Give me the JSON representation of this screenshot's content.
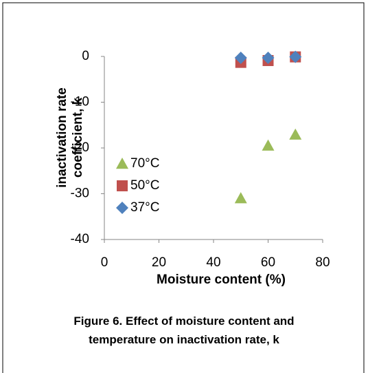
{
  "chart_data": {
    "type": "scatter",
    "caption": "Figure 6. Effect of moisture content and temperature on inactivation rate, k",
    "x_label": "Moisture content (%)",
    "y_label": "inactivation rate coefficient, k",
    "x": [
      50,
      60,
      70
    ],
    "series": [
      {
        "name": "70°C",
        "color": "#9bbb59",
        "marker": "triangle",
        "values": [
          -31,
          -19.5,
          -17.1
        ]
      },
      {
        "name": "50°C",
        "color": "#c0504d",
        "marker": "square",
        "values": [
          -1.3,
          -0.9,
          -0.1
        ]
      },
      {
        "name": "37°C",
        "color": "#4f81bd",
        "marker": "diamond",
        "values": [
          -0.3,
          -0.3,
          -0.1
        ]
      }
    ],
    "xlim": [
      0,
      80
    ],
    "xticks": [
      0,
      20,
      40,
      60,
      80
    ],
    "ylim": [
      -40,
      0
    ],
    "yticks": [
      0,
      -10,
      -20,
      -30,
      -40
    ],
    "legend": "left"
  }
}
